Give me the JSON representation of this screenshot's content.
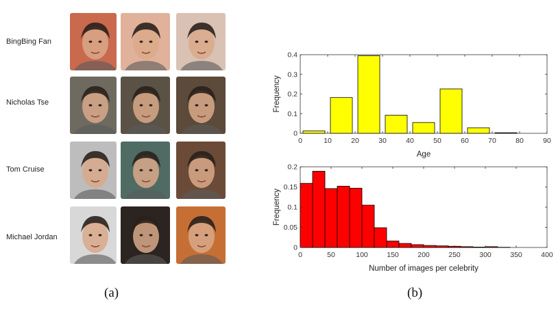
{
  "panel_a": {
    "caption": "(a)",
    "people": [
      {
        "name": "BingBing Fan"
      },
      {
        "name": "Nicholas Tse"
      },
      {
        "name": "Tom Cruise"
      },
      {
        "name": "Michael Jordan"
      }
    ],
    "photo_tones": [
      [
        "#c9694e",
        "#e0b29b",
        "#d9c1b4"
      ],
      [
        "#6e6a60",
        "#5b5246",
        "#5c4a3a"
      ],
      [
        "#bdbdbd",
        "#4f6b63",
        "#6b4b38"
      ],
      [
        "#d8d8d8",
        "#2b2420",
        "#c66f35"
      ]
    ]
  },
  "panel_b": {
    "caption": "(b)"
  },
  "chart_data": [
    {
      "type": "bar",
      "xlabel": "Age",
      "ylabel": "Frequency",
      "xlim": [
        0,
        90
      ],
      "ylim": [
        0,
        0.4
      ],
      "xticks": [
        0,
        10,
        20,
        30,
        40,
        50,
        60,
        70,
        80,
        90
      ],
      "yticks": [
        0,
        0.1,
        0.2,
        0.3,
        0.4
      ],
      "color": "#ffff00",
      "bin_width": 8,
      "bins": [
        5,
        15,
        25,
        35,
        45,
        55,
        65,
        75
      ],
      "values": [
        0.012,
        0.182,
        0.395,
        0.092,
        0.055,
        0.226,
        0.028,
        0.003
      ]
    },
    {
      "type": "bar",
      "xlabel": "Number of images per celebrity",
      "ylabel": "Frequency",
      "xlim": [
        0,
        400
      ],
      "ylim": [
        0,
        0.2
      ],
      "xticks": [
        0,
        50,
        100,
        150,
        200,
        250,
        300,
        350,
        400
      ],
      "yticks": [
        0,
        0.05,
        0.1,
        0.15,
        0.2
      ],
      "color": "#ff0000",
      "bin_width": 20,
      "bins": [
        10,
        30,
        50,
        70,
        90,
        110,
        130,
        150,
        170,
        190,
        210,
        230,
        250,
        270,
        290,
        310,
        330
      ],
      "values": [
        0.159,
        0.189,
        0.146,
        0.152,
        0.147,
        0.105,
        0.049,
        0.016,
        0.01,
        0.007,
        0.005,
        0.004,
        0.003,
        0.002,
        0.001,
        0.002,
        0.0005
      ]
    }
  ]
}
